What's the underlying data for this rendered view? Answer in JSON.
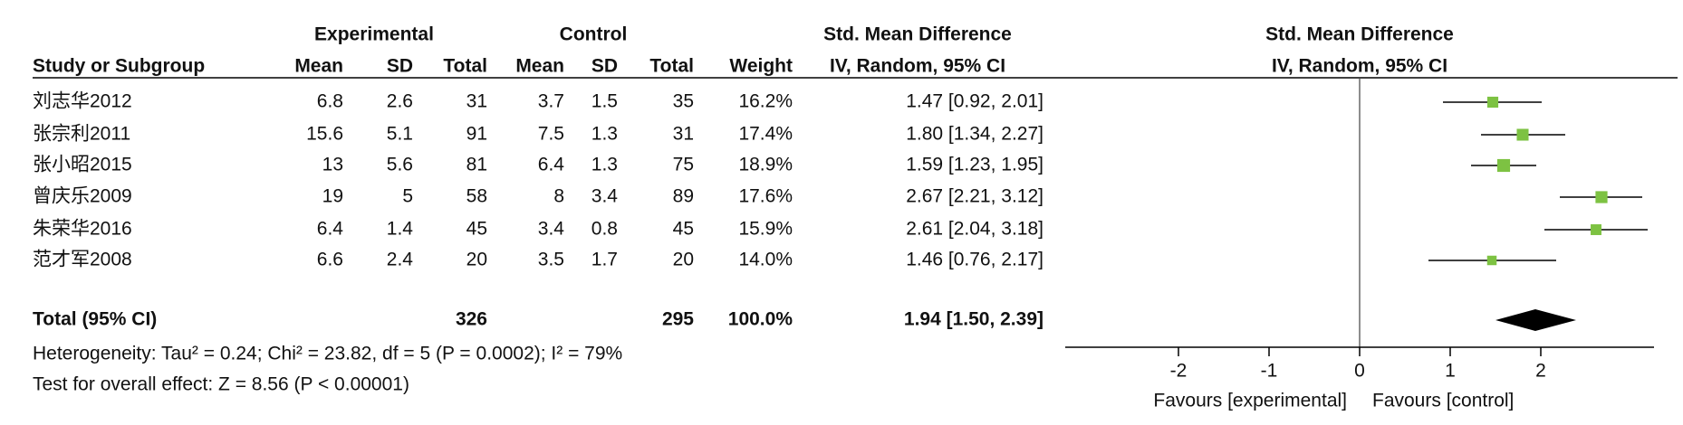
{
  "chart_data": {
    "type": "forest",
    "group_headers": {
      "experimental": "Experimental",
      "control": "Control"
    },
    "effect_header": "Std. Mean Difference",
    "effect_subheader": "IV, Random, 95% CI",
    "plot_header": "Std. Mean Difference",
    "plot_subheader": "IV, Random, 95% CI",
    "column_headers": [
      "Study or Subgroup",
      "Mean",
      "SD",
      "Total",
      "Mean",
      "SD",
      "Total",
      "Weight"
    ],
    "rows": [
      {
        "name": "刘志华2012",
        "exp_mean": 6.8,
        "exp_sd": 2.6,
        "exp_total": 31,
        "ctl_mean": 3.7,
        "ctl_sd": 1.5,
        "ctl_total": 35,
        "weight": 16.2,
        "weight_label": "16.2%",
        "smd": 1.47,
        "lower": 0.92,
        "upper": 2.01,
        "ci_label": "1.47 [0.92, 2.01]"
      },
      {
        "name": "张宗利2011",
        "exp_mean": 15.6,
        "exp_sd": 5.1,
        "exp_total": 91,
        "ctl_mean": 7.5,
        "ctl_sd": 1.3,
        "ctl_total": 31,
        "weight": 17.4,
        "weight_label": "17.4%",
        "smd": 1.8,
        "lower": 1.34,
        "upper": 2.27,
        "ci_label": "1.80 [1.34, 2.27]"
      },
      {
        "name": "张小昭2015",
        "exp_mean": 13,
        "exp_sd": 5.6,
        "exp_total": 81,
        "ctl_mean": 6.4,
        "ctl_sd": 1.3,
        "ctl_total": 75,
        "weight": 18.9,
        "weight_label": "18.9%",
        "smd": 1.59,
        "lower": 1.23,
        "upper": 1.95,
        "ci_label": "1.59 [1.23, 1.95]"
      },
      {
        "name": "曾庆乐2009",
        "exp_mean": 19,
        "exp_sd": 5,
        "exp_total": 58,
        "ctl_mean": 8,
        "ctl_sd": 3.4,
        "ctl_total": 89,
        "weight": 17.6,
        "weight_label": "17.6%",
        "smd": 2.67,
        "lower": 2.21,
        "upper": 3.12,
        "ci_label": "2.67 [2.21, 3.12]"
      },
      {
        "name": "朱荣华2016",
        "exp_mean": 6.4,
        "exp_sd": 1.4,
        "exp_total": 45,
        "ctl_mean": 3.4,
        "ctl_sd": 0.8,
        "ctl_total": 45,
        "weight": 15.9,
        "weight_label": "15.9%",
        "smd": 2.61,
        "lower": 2.04,
        "upper": 3.18,
        "ci_label": "2.61 [2.04, 3.18]"
      },
      {
        "name": "范才军2008",
        "exp_mean": 6.6,
        "exp_sd": 2.4,
        "exp_total": 20,
        "ctl_mean": 3.5,
        "ctl_sd": 1.7,
        "ctl_total": 20,
        "weight": 14.0,
        "weight_label": "14.0%",
        "smd": 1.46,
        "lower": 0.76,
        "upper": 2.17,
        "ci_label": "1.46 [0.76, 2.17]"
      }
    ],
    "total": {
      "label": "Total (95% CI)",
      "exp_total": 326,
      "ctl_total": 295,
      "weight_label": "100.0%",
      "smd": 1.94,
      "lower": 1.5,
      "upper": 2.39,
      "ci_label": "1.94 [1.50, 2.39]"
    },
    "heterogeneity": "Heterogeneity: Tau² = 0.24; Chi² = 23.82, df = 5 (P = 0.0002); I² = 79%",
    "overall_effect": "Test for overall effect: Z = 8.56 (P < 0.00001)",
    "xlim": [
      -3.25,
      3.25
    ],
    "xticks": [
      -2,
      -1,
      0,
      1,
      2
    ],
    "favours_left": "Favours [experimental]",
    "favours_right": "Favours [control]",
    "square_color": "#7dc242",
    "line_color": "#000000"
  }
}
